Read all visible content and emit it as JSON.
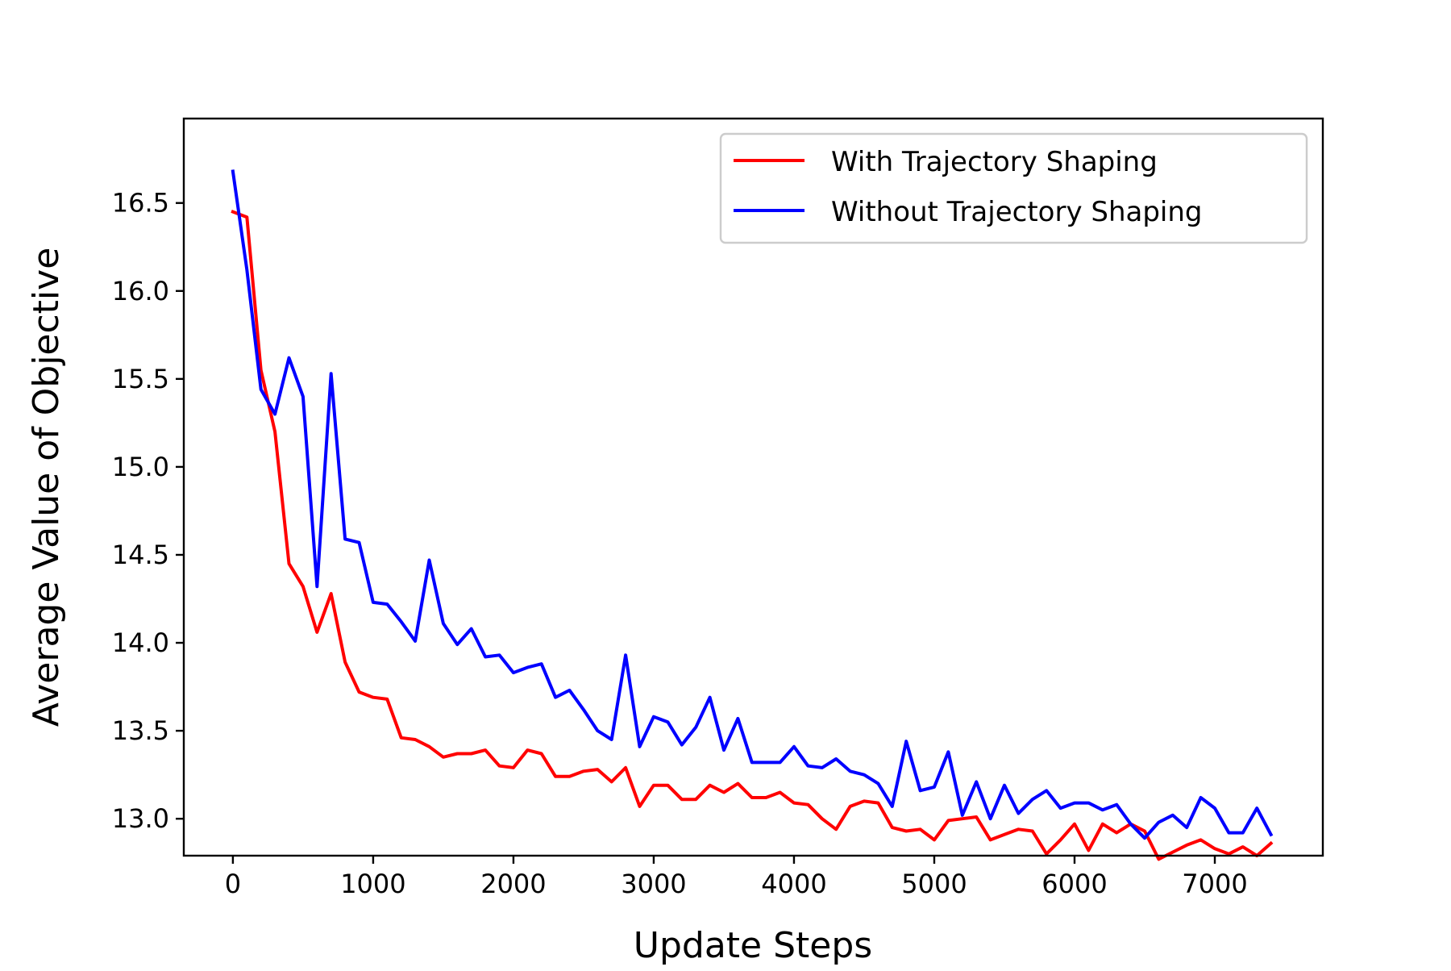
{
  "chart_data": {
    "type": "line",
    "title": "",
    "xlabel": "Update Steps",
    "ylabel": "Average Value of Objective",
    "xlim": [
      -350,
      7770
    ],
    "ylim": [
      12.79,
      16.98
    ],
    "x_ticks": [
      0,
      1000,
      2000,
      3000,
      4000,
      5000,
      6000,
      7000
    ],
    "x_tick_labels": [
      "0",
      "1000",
      "2000",
      "3000",
      "4000",
      "5000",
      "6000",
      "7000"
    ],
    "y_ticks": [
      13.0,
      13.5,
      14.0,
      14.5,
      15.0,
      15.5,
      16.0,
      16.5
    ],
    "y_tick_labels": [
      "13.0",
      "13.5",
      "14.0",
      "14.5",
      "15.0",
      "15.5",
      "16.0",
      "16.5"
    ],
    "grid": false,
    "legend_position": "top-right",
    "x": [
      0,
      100,
      200,
      300,
      400,
      500,
      600,
      700,
      800,
      900,
      1000,
      1100,
      1200,
      1300,
      1400,
      1500,
      1600,
      1700,
      1800,
      1900,
      2000,
      2100,
      2200,
      2300,
      2400,
      2500,
      2600,
      2700,
      2800,
      2900,
      3000,
      3100,
      3200,
      3300,
      3400,
      3500,
      3600,
      3700,
      3800,
      3900,
      4000,
      4100,
      4200,
      4300,
      4400,
      4500,
      4600,
      4700,
      4800,
      4900,
      5000,
      5100,
      5200,
      5300,
      5400,
      5500,
      5600,
      5700,
      5800,
      5900,
      6000,
      6100,
      6200,
      6300,
      6400,
      6500,
      6600,
      6700,
      6800,
      6900,
      7000,
      7100,
      7200,
      7300,
      7400
    ],
    "series": [
      {
        "name": "With Trajectory Shaping",
        "color": "#ff0000",
        "values": [
          16.45,
          16.42,
          15.55,
          15.2,
          14.45,
          14.32,
          14.06,
          14.28,
          13.89,
          13.72,
          13.69,
          13.68,
          13.46,
          13.45,
          13.41,
          13.35,
          13.37,
          13.37,
          13.39,
          13.3,
          13.29,
          13.39,
          13.37,
          13.24,
          13.24,
          13.27,
          13.28,
          13.21,
          13.29,
          13.07,
          13.19,
          13.19,
          13.11,
          13.11,
          13.19,
          13.15,
          13.2,
          13.12,
          13.12,
          13.15,
          13.09,
          13.08,
          13.0,
          12.94,
          13.07,
          13.1,
          13.09,
          12.95,
          12.93,
          12.94,
          12.88,
          12.99,
          13.0,
          13.01,
          12.88,
          12.91,
          12.94,
          12.93,
          12.8,
          12.88,
          12.97,
          12.82,
          12.97,
          12.92,
          12.97,
          12.93,
          12.77,
          12.81,
          12.85,
          12.88,
          12.83,
          12.8,
          12.84,
          12.79,
          12.86
        ]
      },
      {
        "name": "Without Trajectory Shaping",
        "color": "#0000ff",
        "values": [
          16.68,
          16.12,
          15.44,
          15.3,
          15.62,
          15.4,
          14.32,
          15.53,
          14.59,
          14.57,
          14.23,
          14.22,
          14.12,
          14.01,
          14.47,
          14.11,
          13.99,
          14.08,
          13.92,
          13.93,
          13.83,
          13.86,
          13.88,
          13.69,
          13.73,
          13.62,
          13.5,
          13.45,
          13.93,
          13.41,
          13.58,
          13.55,
          13.42,
          13.52,
          13.69,
          13.39,
          13.57,
          13.32,
          13.32,
          13.32,
          13.41,
          13.3,
          13.29,
          13.34,
          13.27,
          13.25,
          13.2,
          13.07,
          13.44,
          13.16,
          13.18,
          13.38,
          13.02,
          13.21,
          13.0,
          13.19,
          13.03,
          13.11,
          13.16,
          13.06,
          13.09,
          13.09,
          13.05,
          13.08,
          12.97,
          12.89,
          12.98,
          13.02,
          12.95,
          13.12,
          13.06,
          12.92,
          12.92,
          13.06,
          12.91
        ]
      }
    ]
  }
}
